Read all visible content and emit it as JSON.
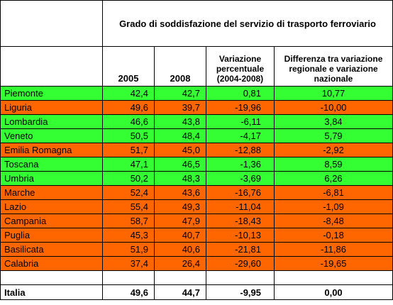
{
  "table": {
    "title": "Grado di soddisfazione del servizio di trasporto ferroviario",
    "headers": {
      "y2005": "2005",
      "y2008": "2008",
      "var": "Variazione percentuale (2004-2008)",
      "diff": "Differenza tra variazione regionale e variazione nazionale"
    },
    "colors": {
      "above": "#33ff33",
      "below": "#ff6600"
    },
    "rows": [
      {
        "region": "Piemonte",
        "v2005": "42,4",
        "v2008": "42,7",
        "var": "0,81",
        "diff": "10,77",
        "status": "above"
      },
      {
        "region": "Liguria",
        "v2005": "49,6",
        "v2008": "39,7",
        "var": "-19,96",
        "diff": "-10,00",
        "status": "below"
      },
      {
        "region": "Lombardia",
        "v2005": "46,6",
        "v2008": "43,8",
        "var": "-6,11",
        "diff": "3,84",
        "status": "above"
      },
      {
        "region": "Veneto",
        "v2005": "50,5",
        "v2008": "48,4",
        "var": "-4,17",
        "diff": "5,79",
        "status": "above"
      },
      {
        "region": "Emilia Romagna",
        "v2005": "51,7",
        "v2008": "45,0",
        "var": "-12,88",
        "diff": "-2,92",
        "status": "below"
      },
      {
        "region": "Toscana",
        "v2005": "47,1",
        "v2008": "46,5",
        "var": "-1,36",
        "diff": "8,59",
        "status": "above"
      },
      {
        "region": "Umbria",
        "v2005": "50,2",
        "v2008": "48,3",
        "var": "-3,69",
        "diff": "6,26",
        "status": "above"
      },
      {
        "region": "Marche",
        "v2005": "52,4",
        "v2008": "43,6",
        "var": "-16,76",
        "diff": "-6,81",
        "status": "below"
      },
      {
        "region": "Lazio",
        "v2005": "55,4",
        "v2008": "49,3",
        "var": "-11,04",
        "diff": "-1,09",
        "status": "below"
      },
      {
        "region": "Campania",
        "v2005": "58,7",
        "v2008": "47,9",
        "var": "-18,43",
        "diff": "-8,48",
        "status": "below"
      },
      {
        "region": "Puglia",
        "v2005": "45,3",
        "v2008": "40,7",
        "var": "-10,13",
        "diff": "-0,18",
        "status": "below"
      },
      {
        "region": "Basilicata",
        "v2005": "51,9",
        "v2008": "40,6",
        "var": "-21,81",
        "diff": "-11,86",
        "status": "below"
      },
      {
        "region": "Calabria",
        "v2005": "37,4",
        "v2008": "26,4",
        "var": "-29,60",
        "diff": "-19,65",
        "status": "below"
      }
    ],
    "total": {
      "region": "Italia",
      "v2005": "49,6",
      "v2008": "44,7",
      "var": "-9,95",
      "diff": "0,00"
    }
  }
}
